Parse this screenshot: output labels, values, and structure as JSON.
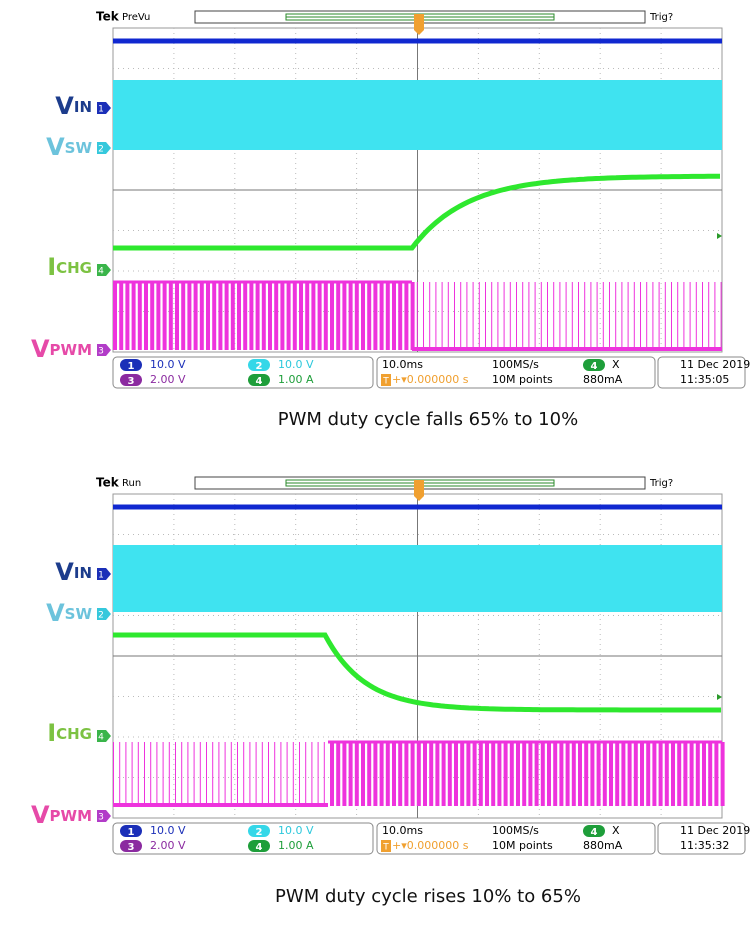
{
  "panels": [
    {
      "header": {
        "brand": "Tek",
        "mode": "PreVu",
        "trigger_status": "Trig?"
      },
      "channel_labels": [
        {
          "main": "V",
          "sub": "IN"
        },
        {
          "main": "V",
          "sub": "SW"
        },
        {
          "main": "I",
          "sub": "CHG"
        },
        {
          "main": "V",
          "sub": "PWM"
        }
      ],
      "channel_markers": [
        "1",
        "2",
        "4",
        "3"
      ],
      "status": {
        "ch1_num": "1",
        "ch1_scale": "10.0 V",
        "ch2_num": "2",
        "ch2_scale": "10.0 V",
        "ch3_num": "3",
        "ch3_scale": "2.00 V",
        "ch4_num": "4",
        "ch4_scale": "1.00 A",
        "timebase": "10.0ms",
        "sample_rate": "100MS/s",
        "trigger_source": "4",
        "trigger_coupling": "X",
        "trigger_pos_icon": "T",
        "trigger_delay": "+▾0.000000 s",
        "record_length": "10M points",
        "trigger_level": "880mA",
        "date": "11 Dec  2019",
        "time": "11:35:05"
      },
      "caption": "PWM duty cycle falls 65% to 10%"
    },
    {
      "header": {
        "brand": "Tek",
        "mode": "Run",
        "trigger_status": "Trig?"
      },
      "channel_labels": [
        {
          "main": "V",
          "sub": "IN"
        },
        {
          "main": "V",
          "sub": "SW"
        },
        {
          "main": "I",
          "sub": "CHG"
        },
        {
          "main": "V",
          "sub": "PWM"
        }
      ],
      "channel_markers": [
        "1",
        "2",
        "4",
        "3"
      ],
      "status": {
        "ch1_num": "1",
        "ch1_scale": "10.0 V",
        "ch2_num": "2",
        "ch2_scale": "10.0 V",
        "ch3_num": "3",
        "ch3_scale": "2.00 V",
        "ch4_num": "4",
        "ch4_scale": "1.00 A",
        "timebase": "10.0ms",
        "sample_rate": "100MS/s",
        "trigger_source": "4",
        "trigger_coupling": "X",
        "trigger_pos_icon": "T",
        "trigger_delay": "+▾0.000000 s",
        "record_length": "10M points",
        "trigger_level": "880mA",
        "date": "11 Dec  2019",
        "time": "11:35:32"
      },
      "caption": "PWM duty cycle rises 10% to 65%"
    }
  ]
}
